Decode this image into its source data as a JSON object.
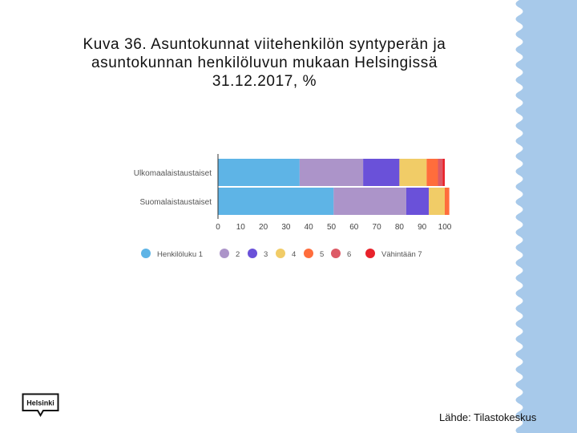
{
  "slide": {
    "title_lines": [
      "Kuva 36. Asuntokunnat viitehenkilön syntyperän ja",
      "asuntokunnan henkilöluvun mukaan Helsingissä",
      "31.12.2017, %"
    ],
    "source": "Lähde: Tilastokeskus",
    "logo_text": "Helsinki"
  },
  "colors": {
    "wave": "#a7c9ea",
    "series": [
      "#5eb4e6",
      "#ac94c9",
      "#6a51d9",
      "#f1cc67",
      "#ff6d3c",
      "#dd5a66",
      "#e8222b"
    ]
  },
  "chart_data": {
    "type": "bar",
    "orientation": "horizontal",
    "stacked": true,
    "categories": [
      "Ulkomaalaistaustaiset",
      "Suomalaistaustaiset"
    ],
    "series": [
      {
        "name": "Henkilöluku 1",
        "values": [
          36,
          51
        ]
      },
      {
        "name": "2",
        "values": [
          28,
          32
        ]
      },
      {
        "name": "3",
        "values": [
          16,
          10
        ]
      },
      {
        "name": "4",
        "values": [
          12,
          7
        ]
      },
      {
        "name": "5",
        "values": [
          5,
          2
        ]
      },
      {
        "name": "6",
        "values": [
          2,
          0
        ]
      },
      {
        "name": "Vähintään 7",
        "values": [
          1,
          0
        ]
      }
    ],
    "xlim": [
      0,
      100
    ],
    "xticks": [
      "0",
      "10",
      "20",
      "30",
      "40",
      "50",
      "60",
      "70",
      "80",
      "90",
      "100"
    ],
    "legend_position": "bottom",
    "grid": false
  }
}
